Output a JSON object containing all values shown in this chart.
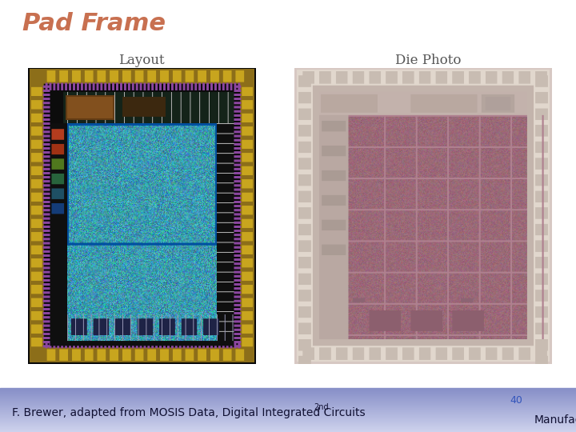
{
  "title": "Pad Frame",
  "title_color": "#C87050",
  "title_fontsize": 22,
  "title_style": "italic",
  "title_weight": "bold",
  "label_layout": "Layout",
  "label_die": "Die Photo",
  "label_fontsize": 12,
  "label_color": "#555555",
  "footer_text": "F. Brewer, adapted from MOSIS Data, Digital Integrated Circuits",
  "footer_superscript": "2nd",
  "footer_right": "Manufacturing",
  "footer_page": "40",
  "footer_color": "#111133",
  "footer_fontsize": 10,
  "bg_color": "#ffffff",
  "footer_bg_top": "#d0d4ee",
  "footer_bg_bottom": "#8890c8"
}
